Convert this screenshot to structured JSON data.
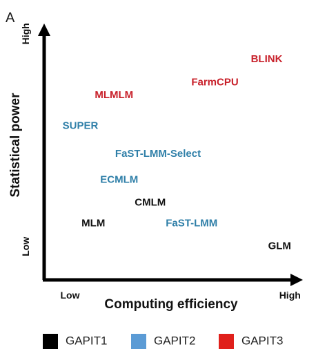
{
  "panel_label": "A",
  "chart_data": {
    "type": "scatter",
    "title": "",
    "xlabel": "Computing efficiency",
    "ylabel": "Statistical power",
    "xlim": [
      0,
      10
    ],
    "ylim": [
      0,
      10
    ],
    "x_ticks": [
      {
        "value": 1,
        "label": "Low"
      },
      {
        "value": 9.5,
        "label": "High"
      }
    ],
    "y_ticks": [
      {
        "value": 1.3,
        "label": "Low"
      },
      {
        "value": 9.6,
        "label": "High"
      }
    ],
    "grid": false,
    "legend_position": "bottom",
    "series": [
      {
        "name": "GAPIT1",
        "color": "#000000",
        "points": [
          {
            "label": "MLM",
            "x": 1.9,
            "y": 2.2
          },
          {
            "label": "CMLM",
            "x": 4.1,
            "y": 3.0
          },
          {
            "label": "GLM",
            "x": 9.1,
            "y": 1.3
          }
        ]
      },
      {
        "name": "GAPIT2",
        "color": "#5b9bd5",
        "points": [
          {
            "label": "SUPER",
            "x": 1.4,
            "y": 6.0
          },
          {
            "label": "FaST-LMM-Select",
            "x": 4.4,
            "y": 4.9
          },
          {
            "label": "ECMLM",
            "x": 2.9,
            "y": 3.9
          },
          {
            "label": "FaST-LMM",
            "x": 5.7,
            "y": 2.2
          }
        ]
      },
      {
        "name": "GAPIT3",
        "color": "#e0201b",
        "points": [
          {
            "label": "MLMLM",
            "x": 2.7,
            "y": 7.2
          },
          {
            "label": "FarmCPU",
            "x": 6.6,
            "y": 7.7
          },
          {
            "label": "BLINK",
            "x": 8.6,
            "y": 8.6
          }
        ]
      }
    ],
    "label_colors": {
      "GAPIT1": "#111111",
      "GAPIT2": "#2f7fa8",
      "GAPIT3": "#c8202a"
    }
  }
}
